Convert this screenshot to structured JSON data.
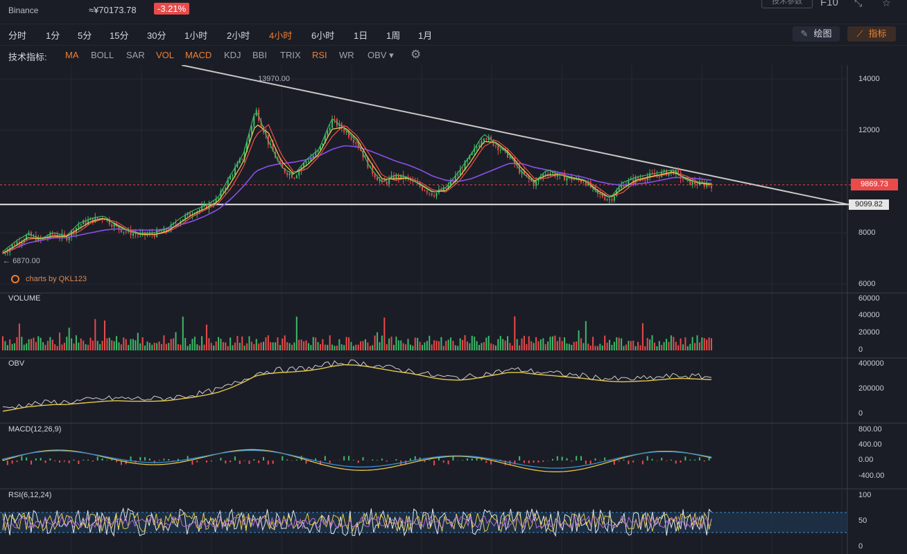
{
  "header": {
    "exchange": "Binance",
    "cny_price": "≈¥70173.78",
    "change": "-3.21%",
    "params_button": "技术参数",
    "f10": "F10"
  },
  "periods": [
    "分时",
    "1分",
    "5分",
    "15分",
    "30分",
    "1小时",
    "2小时",
    "4小时",
    "6小时",
    "1日",
    "1周",
    "1月"
  ],
  "active_period": "4小时",
  "tools": {
    "draw": "绘图",
    "indicators": "指标"
  },
  "indicators": {
    "label": "技术指标:",
    "items": [
      {
        "name": "MA",
        "on": true
      },
      {
        "name": "BOLL",
        "on": false
      },
      {
        "name": "SAR",
        "on": false
      },
      {
        "name": "VOL",
        "on": true
      },
      {
        "name": "MACD",
        "on": true
      },
      {
        "name": "KDJ",
        "on": false
      },
      {
        "name": "BBI",
        "on": false
      },
      {
        "name": "TRIX",
        "on": false
      },
      {
        "name": "RSI",
        "on": true
      },
      {
        "name": "WR",
        "on": false
      },
      {
        "name": "OBV",
        "on": false
      }
    ],
    "obv_dropdown": "OBV ▾"
  },
  "colors": {
    "accent": "#f0802f",
    "up": "#3dbb6a",
    "down": "#e94b4b",
    "bg": "#1b1d26"
  },
  "chart_data": {
    "type": "line",
    "main": {
      "y_ticks": [
        "14000",
        "12000",
        "10000",
        "8000",
        "6000"
      ],
      "ylim": [
        6000,
        14500
      ],
      "high_label": "13970.00",
      "low_label": "6870.00",
      "current_price": "9869.73",
      "support_level": "9099.82",
      "close": [
        7200,
        7600,
        7900,
        7700,
        7950,
        7800,
        8300,
        8500,
        8600,
        8200,
        8000,
        7900,
        7950,
        8100,
        8500,
        8800,
        9000,
        9300,
        10200,
        11000,
        12800,
        11500,
        10500,
        10200,
        10800,
        11200,
        12400,
        12000,
        11500,
        10500,
        9900,
        10200,
        10100,
        9800,
        9500,
        9700,
        10300,
        11000,
        11800,
        11400,
        11000,
        10300,
        9900,
        10400,
        10200,
        10100,
        10000,
        9500,
        9300,
        9900,
        10100,
        10200,
        10300,
        10400,
        10000,
        9900,
        9869.73
      ],
      "ma_purple": [
        7200,
        7400,
        7600,
        7700,
        7800,
        7800,
        7900,
        8000,
        8100,
        8150,
        8100,
        8100,
        8100,
        8150,
        8300,
        8450,
        8650,
        8900,
        9300,
        9800,
        10400,
        10600,
        10700,
        10750,
        10850,
        11000,
        11250,
        11400,
        11350,
        11200,
        11000,
        10800,
        10650,
        10450,
        10200,
        10050,
        10000,
        10100,
        10300,
        10500,
        10700,
        10700,
        10550,
        10450,
        10350,
        10250,
        10150,
        10000,
        9900,
        9850,
        9900,
        9950,
        10050,
        10150,
        10150,
        10100,
        10050
      ]
    },
    "volume": {
      "label": "VOLUME",
      "y_ticks": [
        "60000",
        "40000",
        "20000",
        "0"
      ]
    },
    "obv": {
      "label": "OBV",
      "y_ticks": [
        "400000",
        "200000",
        "0"
      ]
    },
    "macd": {
      "label": "MACD(12,26,9)",
      "y_ticks": [
        "800.00",
        "400.00",
        "0.00",
        "-400.00"
      ]
    },
    "rsi": {
      "label": "RSI(6,12,24)",
      "y_ticks": [
        "100",
        "50",
        "0"
      ]
    }
  },
  "watermark": "charts by QKL123"
}
